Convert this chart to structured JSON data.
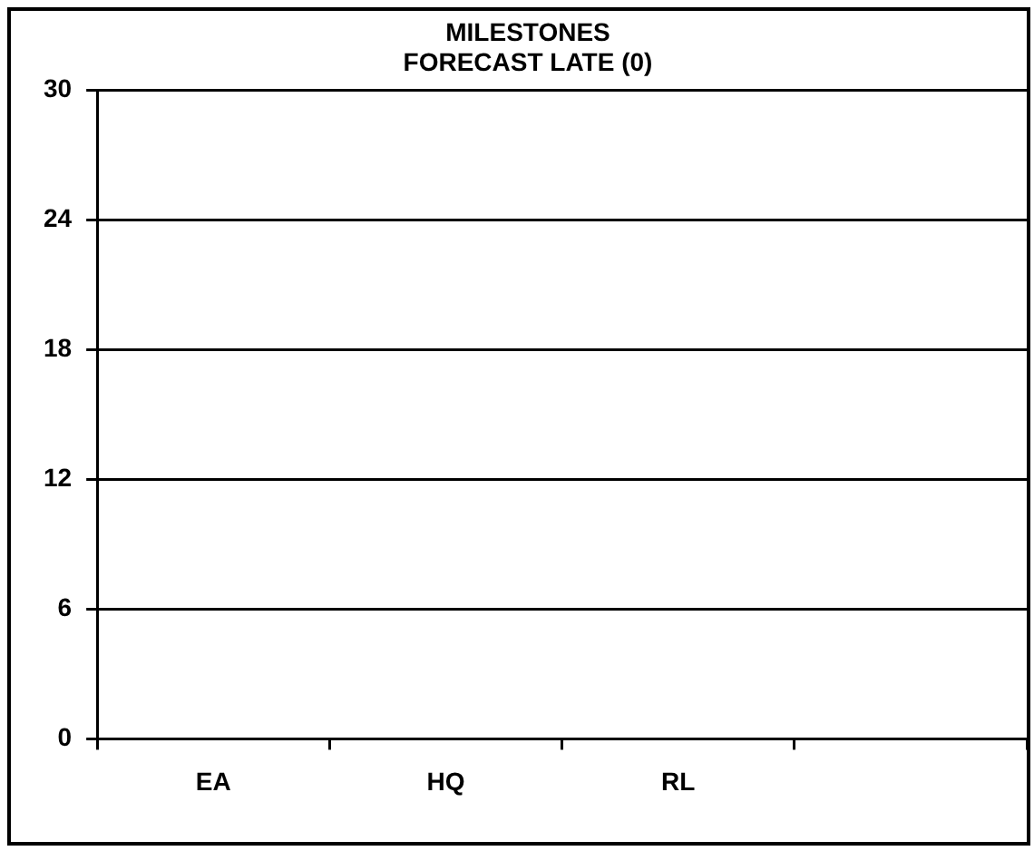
{
  "chart_data": {
    "type": "bar",
    "title": [
      "MILESTONES",
      "FORECAST LATE (0)"
    ],
    "categories": [
      "EA",
      "HQ",
      "RL",
      null
    ],
    "values": [
      0,
      0,
      0,
      0
    ],
    "ylim": [
      0,
      30
    ],
    "yticks": [
      0,
      6,
      12,
      18,
      24,
      30
    ],
    "grid": "y"
  }
}
